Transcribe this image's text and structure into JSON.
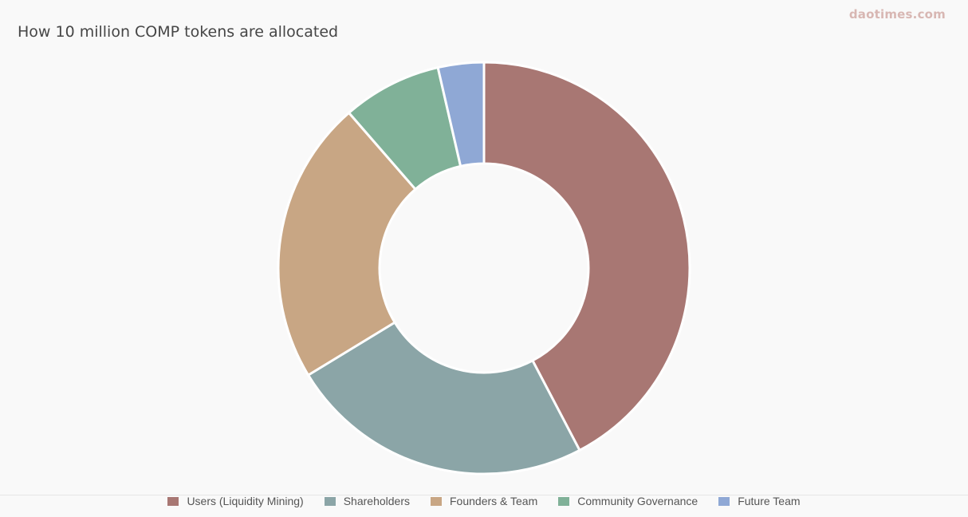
{
  "watermark": "daotimes.com",
  "chart_data": {
    "type": "pie",
    "title": "How 10 million COMP tokens are allocated",
    "donut": true,
    "legend_position": "bottom",
    "series": [
      {
        "name": "Users (Liquidity Mining)",
        "value": 42.3,
        "color": "#a87773"
      },
      {
        "name": "Shareholders",
        "value": 24.0,
        "color": "#8ba5a7"
      },
      {
        "name": "Founders & Team",
        "value": 22.3,
        "color": "#c8a684"
      },
      {
        "name": "Community Governance",
        "value": 7.8,
        "color": "#80b198"
      },
      {
        "name": "Future Team",
        "value": 3.6,
        "color": "#8fa8d5"
      }
    ]
  }
}
